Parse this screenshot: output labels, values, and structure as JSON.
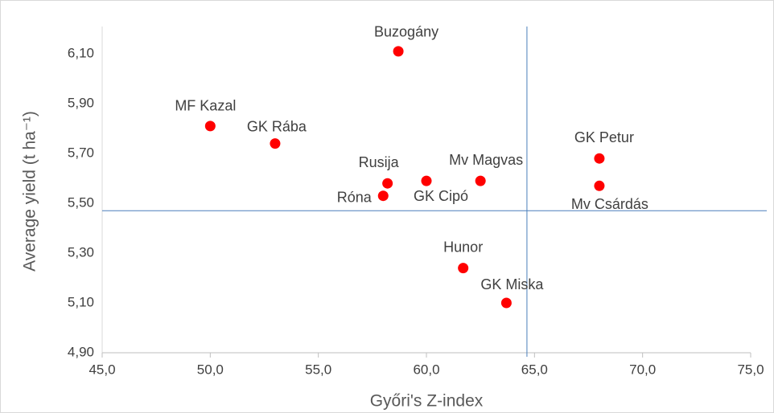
{
  "chart_data": {
    "type": "scatter",
    "x_label": "Győri's Z-index",
    "y_label": "Average yield (t ha⁻¹)",
    "labels": [
      "Buzogány",
      "MF Kazal",
      "GK Rába",
      "Rusija",
      "GK Cipó",
      "Mv Magvas",
      "Róna",
      "GK Petur",
      "Mv Csárdás",
      "Hunor",
      "GK Miska"
    ],
    "x": [
      58.7,
      50.0,
      53.0,
      58.2,
      60.0,
      62.5,
      58.0,
      68.0,
      68.0,
      61.7,
      63.7
    ],
    "y": [
      6.11,
      5.81,
      5.74,
      5.58,
      5.59,
      5.59,
      5.53,
      5.68,
      5.57,
      5.24,
      5.1
    ],
    "color": "#ff0000",
    "reference_color": "#4a7ebb",
    "x_reference": 64.65,
    "y_reference": 5.47,
    "xlim": [
      45,
      75
    ],
    "ylim": [
      4.9,
      6.2
    ],
    "xticks": [
      {
        "value": 45,
        "label": "45,0"
      },
      {
        "value": 50,
        "label": "50,0"
      },
      {
        "value": 55,
        "label": "55,0"
      },
      {
        "value": 60,
        "label": "60,0"
      },
      {
        "value": 65,
        "label": "65,0"
      },
      {
        "value": 70,
        "label": "70,0"
      },
      {
        "value": 75,
        "label": "75,0"
      }
    ],
    "yticks": [
      {
        "value": 4.9,
        "label": "4,90"
      },
      {
        "value": 5.1,
        "label": "5,10"
      },
      {
        "value": 5.3,
        "label": "5,30"
      },
      {
        "value": 5.5,
        "label": "5,50"
      },
      {
        "value": 5.7,
        "label": "5,70"
      },
      {
        "value": 5.9,
        "label": "5,90"
      },
      {
        "value": 6.1,
        "label": "6,10"
      }
    ]
  }
}
